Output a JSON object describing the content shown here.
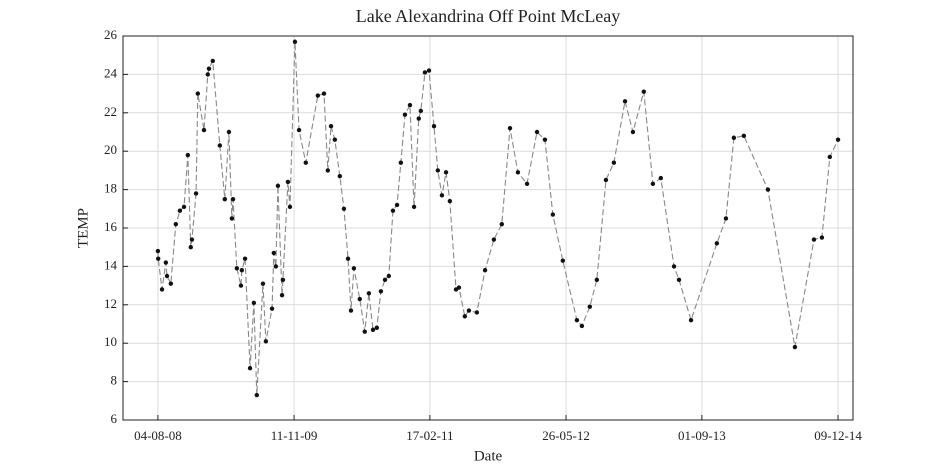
{
  "chart_data": {
    "type": "line",
    "title": "Lake Alexandrina Off Point McLeay",
    "xlabel": "Date",
    "ylabel": "TEMP",
    "x": [
      "2008-08-04",
      "2008-08-05",
      "2008-08-18",
      "2008-08-31",
      "2008-09-04",
      "2008-09-17",
      "2008-10-04",
      "2008-10-18",
      "2008-11-01",
      "2008-11-14",
      "2008-11-24",
      "2008-11-28",
      "2008-12-12",
      "2008-12-18",
      "2009-01-08",
      "2009-01-21",
      "2009-01-25",
      "2009-02-07",
      "2009-03-03",
      "2009-03-20",
      "2009-04-03",
      "2009-04-13",
      "2009-04-17",
      "2009-04-30",
      "2009-05-14",
      "2009-05-17",
      "2009-05-28",
      "2009-06-14",
      "2009-06-27",
      "2009-07-07",
      "2009-07-28",
      "2009-08-07",
      "2009-08-28",
      "2009-09-03",
      "2009-09-10",
      "2009-09-17",
      "2009-10-01",
      "2009-10-04",
      "2009-10-21",
      "2009-10-28",
      "2009-11-14",
      "2009-11-28",
      "2009-12-21",
      "2010-01-31",
      "2010-02-21",
      "2010-03-06",
      "2010-03-17",
      "2010-03-30",
      "2010-04-16",
      "2010-04-30",
      "2010-05-14",
      "2010-05-24",
      "2010-06-03",
      "2010-06-23",
      "2010-07-10",
      "2010-07-24",
      "2010-08-07",
      "2010-08-20",
      "2010-09-03",
      "2010-09-17",
      "2010-09-30",
      "2010-10-14",
      "2010-10-28",
      "2010-11-10",
      "2010-11-24",
      "2010-12-11",
      "2010-12-25",
      "2011-01-10",
      "2011-01-17",
      "2011-01-31",
      "2011-02-14",
      "2011-03-03",
      "2011-03-16",
      "2011-03-30",
      "2011-04-13",
      "2011-04-26",
      "2011-05-17",
      "2011-05-27",
      "2011-06-16",
      "2011-06-30",
      "2011-07-27",
      "2011-08-24",
      "2011-09-23",
      "2011-10-20",
      "2011-11-17",
      "2011-12-14",
      "2012-01-14",
      "2012-02-17",
      "2012-03-15",
      "2012-04-11",
      "2012-05-15",
      "2012-07-02",
      "2012-07-19",
      "2012-08-15",
      "2012-09-08",
      "2012-10-09",
      "2012-11-05",
      "2012-12-13",
      "2013-01-09",
      "2013-02-15",
      "2013-03-18",
      "2013-04-14",
      "2013-05-29",
      "2013-06-15",
      "2013-07-26",
      "2013-10-22",
      "2013-11-22",
      "2013-12-19",
      "2014-01-22",
      "2014-04-14",
      "2014-07-15",
      "2014-09-18",
      "2014-10-15",
      "2014-11-11",
      "2014-12-09"
    ],
    "series": [
      {
        "name": "TEMP",
        "color": "#888888",
        "marker_color": "#111111",
        "values": [
          14.8,
          14.4,
          12.8,
          14.2,
          13.5,
          13.1,
          16.2,
          16.9,
          17.1,
          19.8,
          15.0,
          15.4,
          17.8,
          23.0,
          21.1,
          24.0,
          24.3,
          24.7,
          20.3,
          17.5,
          21.0,
          16.5,
          17.5,
          13.9,
          13.0,
          13.8,
          14.4,
          8.7,
          12.1,
          7.3,
          13.1,
          10.1,
          11.8,
          14.7,
          14.0,
          18.2,
          12.5,
          13.3,
          18.4,
          17.1,
          25.7,
          21.1,
          19.4,
          22.9,
          23.0,
          19.0,
          21.3,
          20.6,
          18.7,
          17.0,
          14.4,
          11.7,
          13.9,
          12.3,
          10.6,
          12.6,
          10.7,
          10.8,
          12.7,
          13.3,
          13.5,
          16.9,
          17.2,
          19.4,
          21.9,
          22.4,
          17.1,
          21.7,
          22.1,
          24.1,
          24.2,
          21.3,
          19.0,
          17.7,
          18.9,
          17.4,
          12.8,
          12.9,
          11.4,
          11.7,
          11.6,
          13.8,
          15.4,
          16.2,
          21.2,
          18.9,
          18.3,
          21.0,
          20.6,
          16.7,
          14.3,
          11.2,
          10.9,
          11.9,
          13.3,
          18.5,
          19.4,
          22.6,
          21.0,
          23.1,
          18.3,
          18.6,
          14.0,
          13.3,
          11.2,
          15.2,
          16.5,
          20.7,
          20.8,
          18.0,
          9.8,
          15.4,
          15.5,
          19.7,
          20.6
        ]
      }
    ],
    "xlim": [
      "2008-04-07",
      "2015-01-29"
    ],
    "xticks": [
      {
        "value": "2008-08-04",
        "label": "04-08-08"
      },
      {
        "value": "2009-11-11",
        "label": "11-11-09"
      },
      {
        "value": "2011-02-17",
        "label": "17-02-11"
      },
      {
        "value": "2012-05-26",
        "label": "26-05-12"
      },
      {
        "value": "2013-09-01",
        "label": "01-09-13"
      },
      {
        "value": "2014-12-09",
        "label": "09-12-14"
      }
    ],
    "ylim": [
      6,
      26
    ],
    "yticks": [
      6,
      8,
      10,
      12,
      14,
      16,
      18,
      20,
      22,
      24,
      26
    ],
    "grid": true
  }
}
